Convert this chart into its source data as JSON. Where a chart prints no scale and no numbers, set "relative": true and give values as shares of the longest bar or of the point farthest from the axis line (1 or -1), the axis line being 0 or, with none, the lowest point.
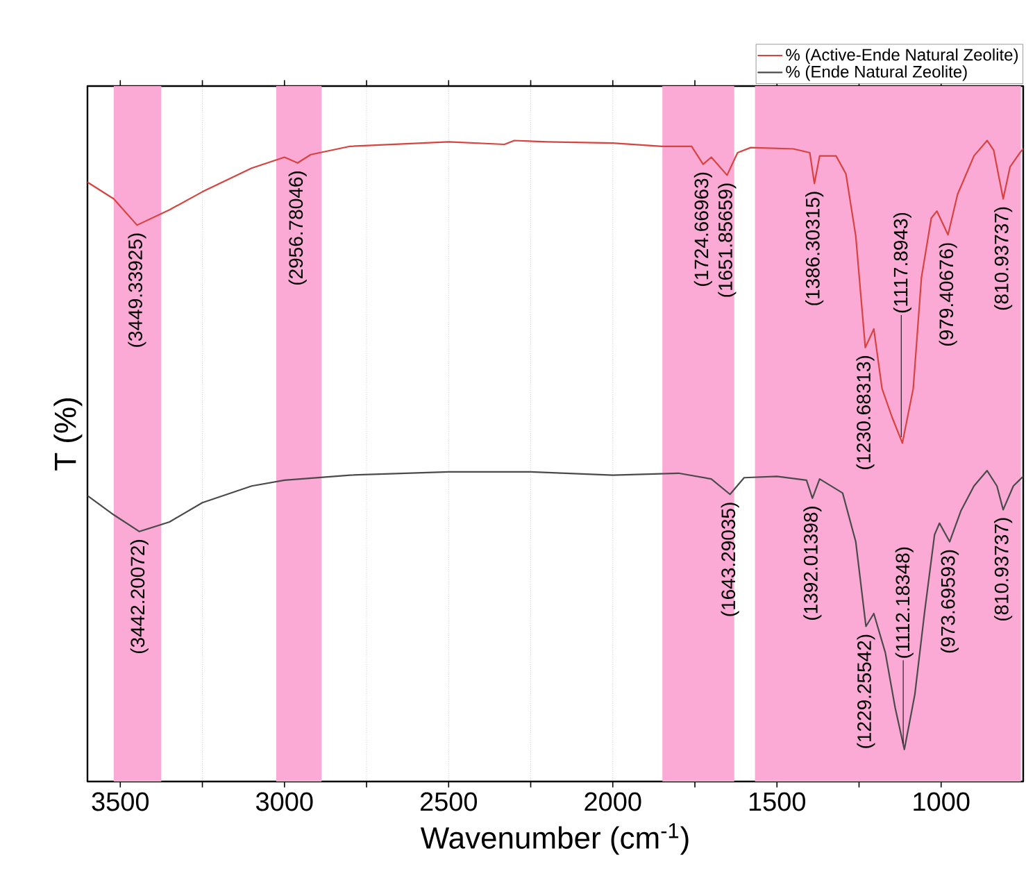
{
  "chart_data": {
    "type": "line",
    "relative": true,
    "xlabel": "Wavenumber (cm$^{-1}$)",
    "ylabel": "T (%)",
    "xlim": [
      3600,
      750
    ],
    "xticks": [
      3500,
      {
        "value": 3250,
        "label": null
      },
      3000,
      {
        "value": 2750,
        "label": null
      },
      2500,
      {
        "value": 2250,
        "label": null
      },
      2000,
      {
        "value": 1750,
        "label": null
      },
      1500,
      {
        "value": 1250,
        "label": null
      },
      1000
    ],
    "grid": "x",
    "legend": "top right",
    "marker": "none",
    "line_style": "solid",
    "x": [
      3600,
      3520,
      3449,
      3350,
      3250,
      3100,
      3000,
      2960,
      2920,
      2800,
      2500,
      2330,
      2300,
      2200,
      2000,
      1850,
      1760,
      1725,
      1700,
      1652,
      1620,
      1580,
      1450,
      1400,
      1386,
      1370,
      1320,
      1290,
      1260,
      1231,
      1205,
      1180,
      1150,
      1118,
      1085,
      1060,
      1030,
      1013,
      979,
      950,
      900,
      860,
      840,
      811,
      790,
      760,
      750
    ],
    "series": [
      {
        "name": "% (Active-Ende Natural Zeolite)",
        "color": "#d8423f",
        "values": [
          0.935,
          0.909,
          0.868,
          0.892,
          0.92,
          0.957,
          0.974,
          0.965,
          0.978,
          0.991,
          0.998,
          0.994,
          1.0,
          0.998,
          0.996,
          0.991,
          0.991,
          0.963,
          0.974,
          0.946,
          0.981,
          0.989,
          0.987,
          0.981,
          0.933,
          0.976,
          0.976,
          0.948,
          0.851,
          0.677,
          0.706,
          0.613,
          0.569,
          0.528,
          0.613,
          0.786,
          0.879,
          0.89,
          0.853,
          0.916,
          0.976,
          1.0,
          0.985,
          0.909,
          0.959,
          0.981,
          0.987
        ]
      },
      {
        "name": "% (Ende Natural Zeolite)",
        "color": "#4a4a4a",
        "x": [
          3600,
          3520,
          3442,
          3350,
          3250,
          3100,
          3000,
          2800,
          2500,
          2250,
          2000,
          1800,
          1700,
          1643,
          1600,
          1500,
          1410,
          1392,
          1370,
          1300,
          1260,
          1229,
          1205,
          1170,
          1140,
          1112,
          1080,
          1050,
          1020,
          1005,
          974,
          940,
          900,
          860,
          830,
          811,
          780,
          750
        ],
        "values": [
          0.446,
          0.416,
          0.39,
          0.405,
          0.435,
          0.461,
          0.47,
          0.478,
          0.483,
          0.483,
          0.478,
          0.481,
          0.472,
          0.448,
          0.474,
          0.476,
          0.47,
          0.442,
          0.472,
          0.45,
          0.374,
          0.242,
          0.262,
          0.201,
          0.115,
          0.05,
          0.136,
          0.266,
          0.385,
          0.403,
          0.374,
          0.422,
          0.461,
          0.485,
          0.461,
          0.424,
          0.461,
          0.476
        ]
      }
    ],
    "bands": [
      {
        "axis": "x",
        "from": 3520,
        "to": 3375,
        "color": "#fbaad6"
      },
      {
        "axis": "x",
        "from": 3025,
        "to": 2887,
        "color": "#fbaad6"
      },
      {
        "axis": "x",
        "from": 1849,
        "to": 1630,
        "color": "#fbaad6"
      },
      {
        "axis": "x",
        "from": 1567,
        "to": 757,
        "color": "#fbaad6"
      }
    ],
    "annotations": [
      {
        "text": "(3449.33925)",
        "x": 3449,
        "y": 0.868
      },
      {
        "text": "(2956.78046)",
        "x": 2960,
        "y": 0.965
      },
      {
        "text": "(1724.66963)",
        "x": 1725,
        "y": 0.963
      },
      {
        "text": "(1651.85659)",
        "x": 1652,
        "y": 0.946
      },
      {
        "text": "(1386.30315)",
        "x": 1386,
        "y": 0.933
      },
      {
        "text": "(1230.68313)",
        "x": 1231,
        "y": 0.677
      },
      {
        "text": "(1117.8943)",
        "x": 1118,
        "y": 0.528
      },
      {
        "text": "(979.40676)",
        "x": 979,
        "y": 0.853
      },
      {
        "text": "(810.93737)",
        "x": 811,
        "y": 0.909
      },
      {
        "text": "(3442.20072)",
        "x": 3442,
        "y": 0.39
      },
      {
        "text": "(1643.29035)",
        "x": 1643,
        "y": 0.448
      },
      {
        "text": "(1392.01398)",
        "x": 1392,
        "y": 0.442
      },
      {
        "text": "(1229.25542)",
        "x": 1229,
        "y": 0.242
      },
      {
        "text": "(1112.18348)",
        "x": 1112,
        "y": 0.05
      },
      {
        "text": "(973.69593)",
        "x": 974,
        "y": 0.374
      },
      {
        "text": "(810.93737)",
        "x": 811,
        "y": 0.424
      }
    ]
  }
}
